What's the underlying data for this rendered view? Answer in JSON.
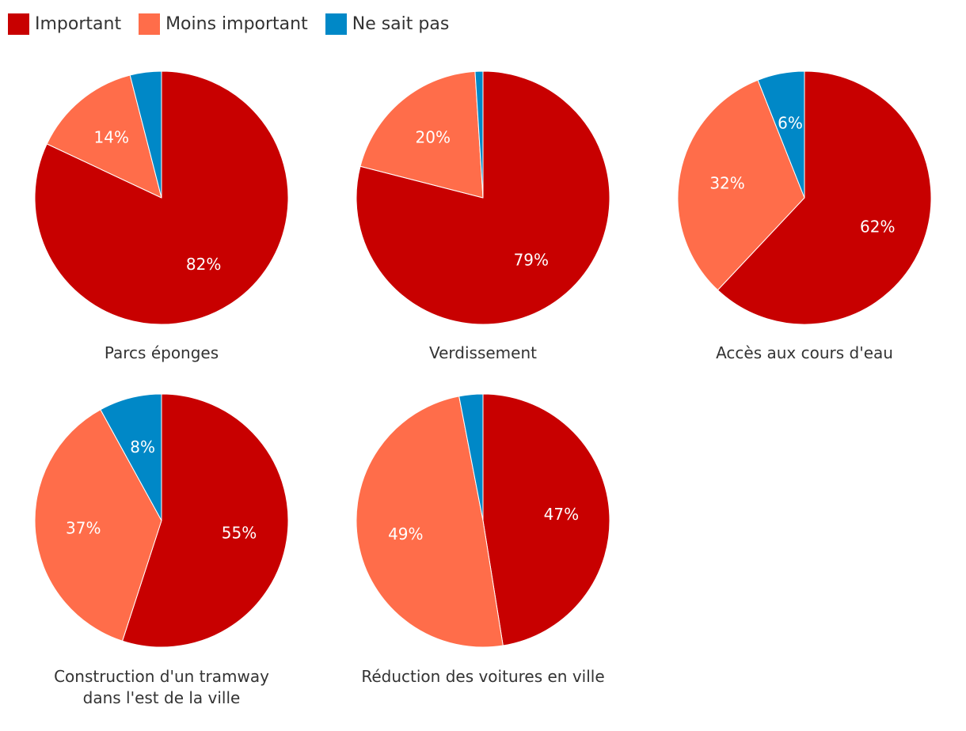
{
  "colors": {
    "important": "#C80000",
    "moins_important": "#FF6D4A",
    "ne_sait_pas": "#0088C7"
  },
  "legend": [
    {
      "label": "Important",
      "color_key": "important"
    },
    {
      "label": "Moins important",
      "color_key": "moins_important"
    },
    {
      "label": "Ne sait pas",
      "color_key": "ne_sait_pas"
    }
  ],
  "chart_data": [
    {
      "type": "pie",
      "title": "Parcs éponges",
      "slices": [
        {
          "category": "Important",
          "value": 82,
          "label": "82%"
        },
        {
          "category": "Moins important",
          "value": 14,
          "label": "14%"
        },
        {
          "category": "Ne sait pas",
          "value": 4,
          "label": ""
        }
      ]
    },
    {
      "type": "pie",
      "title": "Verdissement",
      "slices": [
        {
          "category": "Important",
          "value": 79,
          "label": "79%"
        },
        {
          "category": "Moins important",
          "value": 20,
          "label": "20%"
        },
        {
          "category": "Ne sait pas",
          "value": 1,
          "label": ""
        }
      ]
    },
    {
      "type": "pie",
      "title": "Accès aux cours d'eau",
      "slices": [
        {
          "category": "Important",
          "value": 62,
          "label": "62%"
        },
        {
          "category": "Moins important",
          "value": 32,
          "label": "32%"
        },
        {
          "category": "Ne sait pas",
          "value": 6,
          "label": "6%"
        }
      ]
    },
    {
      "type": "pie",
      "title": "Construction d'un tramway dans l'est de la ville",
      "title_lines": [
        "Construction d'un tramway",
        "dans l'est de la ville"
      ],
      "slices": [
        {
          "category": "Important",
          "value": 55,
          "label": "55%"
        },
        {
          "category": "Moins important",
          "value": 37,
          "label": "37%"
        },
        {
          "category": "Ne sait pas",
          "value": 8,
          "label": "8%"
        }
      ]
    },
    {
      "type": "pie",
      "title": "Réduction des voitures en ville",
      "slices": [
        {
          "category": "Important",
          "value": 47,
          "label": "47%"
        },
        {
          "category": "Moins important",
          "value": 49,
          "label": "49%"
        },
        {
          "category": "Ne sait pas",
          "value": 3,
          "label": ""
        }
      ]
    }
  ]
}
